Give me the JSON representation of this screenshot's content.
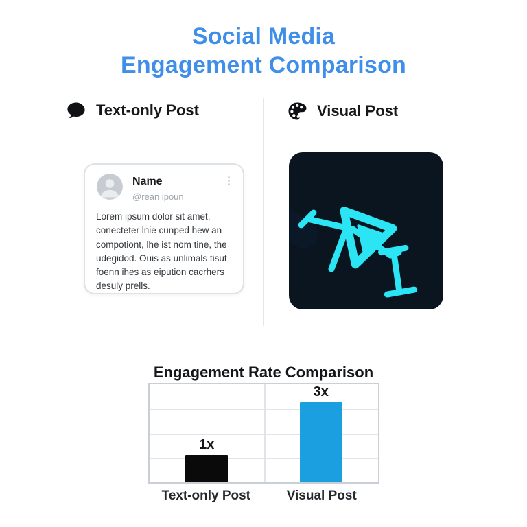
{
  "title": {
    "line1": "Social Media",
    "line2": "Engagement Comparison"
  },
  "left_section": {
    "header": "Text-only Post",
    "icon": "speech-bubble-icon",
    "card": {
      "name": "Name",
      "handle": "@rean ipoun",
      "menu_icon": "kebab-menu-icon",
      "avatar_icon": "person-avatar-icon",
      "body": "Lorem ipsum dolor sit amet, conecteter lnie cunped hew an compotiont, lhe ist nom tine, the udegidod. Ouis as unlimals tisut foenn ihes as eipution cacrhers desuly prells."
    }
  },
  "right_section": {
    "header": "Visual Post",
    "icon": "palette-icon",
    "image_description": "abstract dark-navy artwork with diagonal blue and cyan bands and a cyan play-button motif"
  },
  "chart": {
    "title": "Engagement Rate Comparison"
  },
  "chart_data": {
    "type": "bar",
    "title": "Engagement Rate Comparison",
    "categories": [
      "Text-only Post",
      "Visual Post"
    ],
    "values": [
      1,
      3
    ],
    "value_labels": [
      "1x",
      "3x"
    ],
    "bar_colors": [
      "#0A0A0A",
      "#1B9FE0"
    ],
    "ylim": [
      0,
      3.6
    ],
    "grid": true,
    "legend": false,
    "xlabel": "",
    "ylabel": ""
  },
  "colors": {
    "title_blue": "#3F8EE8",
    "bar_blue": "#1B9FE0",
    "bar_black": "#0A0A0A",
    "artwork_navy": "#0B1520",
    "artwork_cyan": "#27E2F4",
    "artwork_blue": "#2E6BF7",
    "divider_gray": "#E2E8E9",
    "card_border": "#DDE2E6",
    "grid_gray": "#E0E4E8"
  }
}
